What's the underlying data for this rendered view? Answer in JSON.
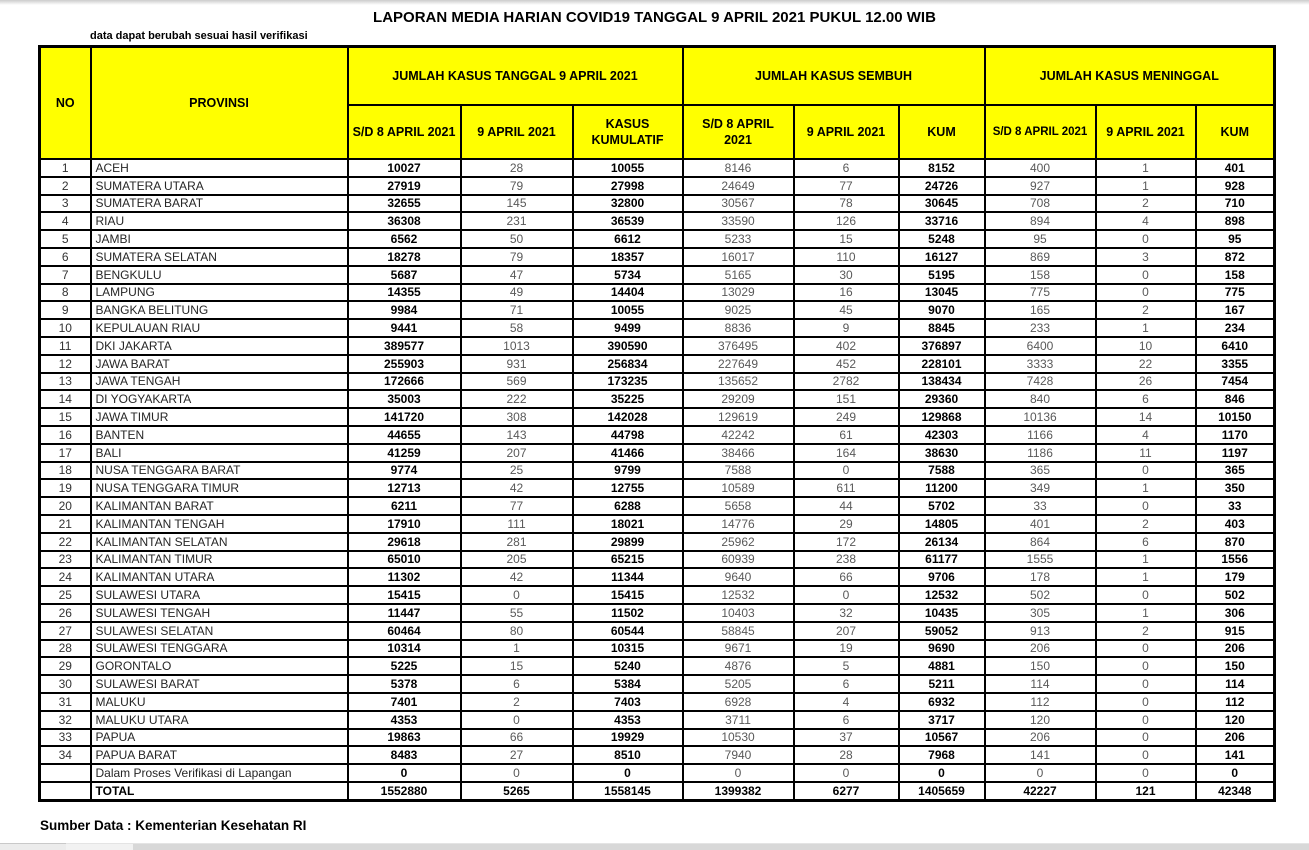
{
  "title": "LAPORAN MEDIA HARIAN COVID19 TANGGAL 9 APRIL 2021 PUKUL 12.00 WIB",
  "note": "data dapat berubah sesuai hasil verifikasi",
  "footer": "Sumber Data : Kementerian Kesehatan RI",
  "accent_color": "#FFFF00",
  "table": {
    "col_no": "NO",
    "col_provinsi": "PROVINSI",
    "group_kasus": "JUMLAH KASUS TANGGAL 9 APRIL 2021",
    "group_sembuh": "JUMLAH KASUS SEMBUH",
    "group_meninggal": "JUMLAH KASUS MENINGGAL",
    "subheaders": [
      "S/D 8 APRIL 2021",
      "9 APRIL 2021",
      "KASUS\nKUMULATIF",
      "S/D 8 APRIL\n2021",
      "9 APRIL 2021",
      "KUM",
      "S/D 8 APRIL 2021",
      "9 APRIL 2021",
      "KUM"
    ],
    "rows": [
      {
        "no": "1",
        "provinsi": "ACEH",
        "values": [
          "10027",
          "28",
          "10055",
          "8146",
          "6",
          "8152",
          "400",
          "1",
          "401"
        ]
      },
      {
        "no": "2",
        "provinsi": "SUMATERA UTARA",
        "values": [
          "27919",
          "79",
          "27998",
          "24649",
          "77",
          "24726",
          "927",
          "1",
          "928"
        ]
      },
      {
        "no": "3",
        "provinsi": "SUMATERA BARAT",
        "values": [
          "32655",
          "145",
          "32800",
          "30567",
          "78",
          "30645",
          "708",
          "2",
          "710"
        ]
      },
      {
        "no": "4",
        "provinsi": "RIAU",
        "values": [
          "36308",
          "231",
          "36539",
          "33590",
          "126",
          "33716",
          "894",
          "4",
          "898"
        ]
      },
      {
        "no": "5",
        "provinsi": "JAMBI",
        "values": [
          "6562",
          "50",
          "6612",
          "5233",
          "15",
          "5248",
          "95",
          "0",
          "95"
        ]
      },
      {
        "no": "6",
        "provinsi": "SUMATERA SELATAN",
        "values": [
          "18278",
          "79",
          "18357",
          "16017",
          "110",
          "16127",
          "869",
          "3",
          "872"
        ]
      },
      {
        "no": "7",
        "provinsi": "BENGKULU",
        "values": [
          "5687",
          "47",
          "5734",
          "5165",
          "30",
          "5195",
          "158",
          "0",
          "158"
        ]
      },
      {
        "no": "8",
        "provinsi": "LAMPUNG",
        "values": [
          "14355",
          "49",
          "14404",
          "13029",
          "16",
          "13045",
          "775",
          "0",
          "775"
        ]
      },
      {
        "no": "9",
        "provinsi": "BANGKA BELITUNG",
        "values": [
          "9984",
          "71",
          "10055",
          "9025",
          "45",
          "9070",
          "165",
          "2",
          "167"
        ]
      },
      {
        "no": "10",
        "provinsi": "KEPULAUAN RIAU",
        "values": [
          "9441",
          "58",
          "9499",
          "8836",
          "9",
          "8845",
          "233",
          "1",
          "234"
        ]
      },
      {
        "no": "11",
        "provinsi": "DKI JAKARTA",
        "values": [
          "389577",
          "1013",
          "390590",
          "376495",
          "402",
          "376897",
          "6400",
          "10",
          "6410"
        ]
      },
      {
        "no": "12",
        "provinsi": "JAWA BARAT",
        "values": [
          "255903",
          "931",
          "256834",
          "227649",
          "452",
          "228101",
          "3333",
          "22",
          "3355"
        ]
      },
      {
        "no": "13",
        "provinsi": "JAWA TENGAH",
        "values": [
          "172666",
          "569",
          "173235",
          "135652",
          "2782",
          "138434",
          "7428",
          "26",
          "7454"
        ]
      },
      {
        "no": "14",
        "provinsi": "DI YOGYAKARTA",
        "values": [
          "35003",
          "222",
          "35225",
          "29209",
          "151",
          "29360",
          "840",
          "6",
          "846"
        ]
      },
      {
        "no": "15",
        "provinsi": "JAWA TIMUR",
        "values": [
          "141720",
          "308",
          "142028",
          "129619",
          "249",
          "129868",
          "10136",
          "14",
          "10150"
        ]
      },
      {
        "no": "16",
        "provinsi": "BANTEN",
        "values": [
          "44655",
          "143",
          "44798",
          "42242",
          "61",
          "42303",
          "1166",
          "4",
          "1170"
        ]
      },
      {
        "no": "17",
        "provinsi": "BALI",
        "values": [
          "41259",
          "207",
          "41466",
          "38466",
          "164",
          "38630",
          "1186",
          "11",
          "1197"
        ]
      },
      {
        "no": "18",
        "provinsi": "NUSA TENGGARA BARAT",
        "values": [
          "9774",
          "25",
          "9799",
          "7588",
          "0",
          "7588",
          "365",
          "0",
          "365"
        ]
      },
      {
        "no": "19",
        "provinsi": "NUSA TENGGARA TIMUR",
        "values": [
          "12713",
          "42",
          "12755",
          "10589",
          "611",
          "11200",
          "349",
          "1",
          "350"
        ]
      },
      {
        "no": "20",
        "provinsi": "KALIMANTAN BARAT",
        "values": [
          "6211",
          "77",
          "6288",
          "5658",
          "44",
          "5702",
          "33",
          "0",
          "33"
        ]
      },
      {
        "no": "21",
        "provinsi": "KALIMANTAN TENGAH",
        "values": [
          "17910",
          "111",
          "18021",
          "14776",
          "29",
          "14805",
          "401",
          "2",
          "403"
        ]
      },
      {
        "no": "22",
        "provinsi": "KALIMANTAN SELATAN",
        "values": [
          "29618",
          "281",
          "29899",
          "25962",
          "172",
          "26134",
          "864",
          "6",
          "870"
        ]
      },
      {
        "no": "23",
        "provinsi": "KALIMANTAN TIMUR",
        "values": [
          "65010",
          "205",
          "65215",
          "60939",
          "238",
          "61177",
          "1555",
          "1",
          "1556"
        ]
      },
      {
        "no": "24",
        "provinsi": "KALIMANTAN UTARA",
        "values": [
          "11302",
          "42",
          "11344",
          "9640",
          "66",
          "9706",
          "178",
          "1",
          "179"
        ]
      },
      {
        "no": "25",
        "provinsi": "SULAWESI UTARA",
        "values": [
          "15415",
          "0",
          "15415",
          "12532",
          "0",
          "12532",
          "502",
          "0",
          "502"
        ]
      },
      {
        "no": "26",
        "provinsi": "SULAWESI TENGAH",
        "values": [
          "11447",
          "55",
          "11502",
          "10403",
          "32",
          "10435",
          "305",
          "1",
          "306"
        ]
      },
      {
        "no": "27",
        "provinsi": "SULAWESI SELATAN",
        "values": [
          "60464",
          "80",
          "60544",
          "58845",
          "207",
          "59052",
          "913",
          "2",
          "915"
        ]
      },
      {
        "no": "28",
        "provinsi": "SULAWESI TENGGARA",
        "values": [
          "10314",
          "1",
          "10315",
          "9671",
          "19",
          "9690",
          "206",
          "0",
          "206"
        ]
      },
      {
        "no": "29",
        "provinsi": "GORONTALO",
        "values": [
          "5225",
          "15",
          "5240",
          "4876",
          "5",
          "4881",
          "150",
          "0",
          "150"
        ]
      },
      {
        "no": "30",
        "provinsi": "SULAWESI BARAT",
        "values": [
          "5378",
          "6",
          "5384",
          "5205",
          "6",
          "5211",
          "114",
          "0",
          "114"
        ]
      },
      {
        "no": "31",
        "provinsi": "MALUKU",
        "values": [
          "7401",
          "2",
          "7403",
          "6928",
          "4",
          "6932",
          "112",
          "0",
          "112"
        ]
      },
      {
        "no": "32",
        "provinsi": "MALUKU UTARA",
        "values": [
          "4353",
          "0",
          "4353",
          "3711",
          "6",
          "3717",
          "120",
          "0",
          "120"
        ]
      },
      {
        "no": "33",
        "provinsi": "PAPUA",
        "values": [
          "19863",
          "66",
          "19929",
          "10530",
          "37",
          "10567",
          "206",
          "0",
          "206"
        ]
      },
      {
        "no": "34",
        "provinsi": "PAPUA BARAT",
        "values": [
          "8483",
          "27",
          "8510",
          "7940",
          "28",
          "7968",
          "141",
          "0",
          "141"
        ]
      },
      {
        "no": "",
        "provinsi": "Dalam Proses Verifikasi di Lapangan",
        "values": [
          "0",
          "0",
          "0",
          "0",
          "0",
          "0",
          "0",
          "0",
          "0"
        ]
      },
      {
        "no": "",
        "provinsi": "TOTAL",
        "total": true,
        "values": [
          "1552880",
          "5265",
          "1558145",
          "1399382",
          "6277",
          "1405659",
          "42227",
          "121",
          "42348"
        ]
      }
    ]
  }
}
